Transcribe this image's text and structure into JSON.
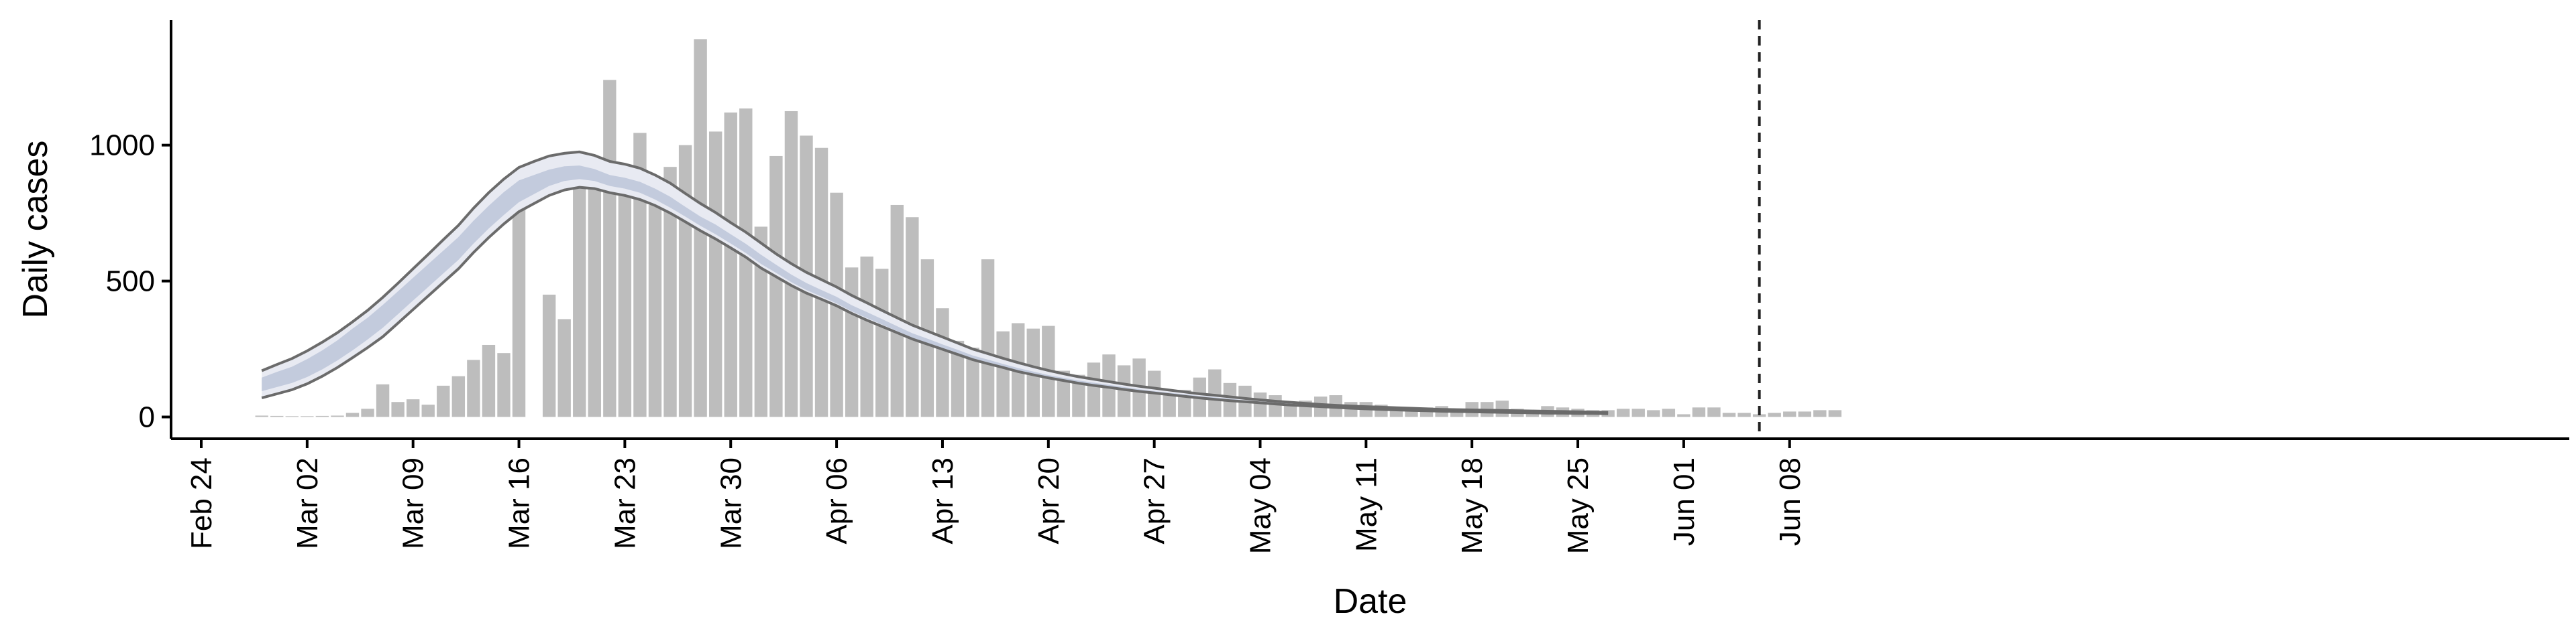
{
  "chart_data": {
    "type": "bar",
    "xlabel": "Date",
    "ylabel": "Daily cases",
    "ylim": [
      -80,
      1460
    ],
    "yticks": [
      0,
      500,
      1000
    ],
    "xticks": [
      "Feb 24",
      "Mar 02",
      "Mar 09",
      "Mar 16",
      "Mar 23",
      "Mar 30",
      "Apr 06",
      "Apr 13",
      "Apr 20",
      "Apr 27",
      "May 04",
      "May 11",
      "May 18",
      "May 25",
      "Jun 01",
      "Jun 08"
    ],
    "xtick_days": [
      0,
      7,
      14,
      21,
      28,
      35,
      42,
      49,
      56,
      63,
      70,
      77,
      84,
      91,
      98,
      105
    ],
    "x_start_date": "Feb 24",
    "bar_start_day": 4,
    "bars": [
      5,
      4,
      3,
      3,
      4,
      5,
      15,
      30,
      120,
      55,
      65,
      45,
      115,
      150,
      210,
      265,
      235,
      840,
      0,
      450,
      360,
      940,
      940,
      1240,
      890,
      1045,
      780,
      920,
      1000,
      1390,
      1050,
      1120,
      1135,
      700,
      960,
      1125,
      1035,
      990,
      825,
      550,
      590,
      545,
      780,
      735,
      580,
      400,
      280,
      255,
      580,
      315,
      345,
      325,
      335,
      170,
      155,
      200,
      230,
      190,
      215,
      170,
      95,
      100,
      145,
      175,
      125,
      115,
      90,
      80,
      55,
      60,
      75,
      80,
      55,
      55,
      45,
      35,
      30,
      35,
      40,
      30,
      55,
      55,
      60,
      30,
      25,
      40,
      35,
      30,
      25,
      25,
      30,
      30,
      25,
      30,
      10,
      35,
      35,
      15,
      15,
      10,
      15,
      20,
      20,
      25,
      25
    ],
    "band_start_day": 4,
    "estimate_median": [
      120,
      138,
      155,
      180,
      210,
      245,
      285,
      325,
      370,
      420,
      470,
      520,
      570,
      620,
      680,
      735,
      785,
      830,
      855,
      880,
      895,
      900,
      890,
      870,
      860,
      845,
      820,
      790,
      755,
      720,
      690,
      655,
      620,
      580,
      545,
      510,
      480,
      455,
      430,
      400,
      375,
      350,
      325,
      300,
      280,
      260,
      240,
      220,
      205,
      190,
      175,
      162,
      150,
      140,
      130,
      122,
      114,
      106,
      99,
      92,
      86,
      80,
      74,
      69,
      64,
      59,
      55,
      51,
      47,
      44,
      41,
      38,
      35,
      33,
      31,
      29,
      27,
      26,
      24,
      23,
      22,
      21,
      20,
      19,
      18,
      17,
      16,
      15,
      15,
      14
    ],
    "estimate_inner_lower": [
      95,
      110,
      125,
      147,
      175,
      208,
      245,
      285,
      328,
      378,
      428,
      478,
      528,
      578,
      638,
      693,
      743,
      790,
      820,
      850,
      868,
      875,
      868,
      850,
      840,
      825,
      800,
      770,
      737,
      703,
      672,
      638,
      603,
      563,
      530,
      496,
      467,
      443,
      418,
      389,
      364,
      340,
      316,
      292,
      272,
      253,
      233,
      214,
      199,
      185,
      170,
      157,
      146,
      136,
      126,
      118,
      110,
      102,
      96,
      89,
      83,
      77,
      71,
      66,
      61,
      57,
      53,
      49,
      45,
      42,
      39,
      36,
      33,
      31,
      29,
      27,
      25,
      24,
      22,
      21,
      20,
      19,
      18,
      17,
      16,
      15,
      15,
      14,
      14,
      13
    ],
    "estimate_inner_upper": [
      145,
      166,
      185,
      213,
      245,
      282,
      325,
      365,
      412,
      462,
      512,
      562,
      612,
      662,
      722,
      777,
      827,
      870,
      890,
      910,
      922,
      925,
      912,
      890,
      880,
      865,
      840,
      810,
      773,
      737,
      708,
      672,
      637,
      597,
      560,
      524,
      493,
      467,
      442,
      411,
      386,
      360,
      334,
      308,
      288,
      267,
      247,
      226,
      211,
      195,
      180,
      167,
      154,
      144,
      134,
      126,
      118,
      110,
      102,
      95,
      89,
      83,
      77,
      72,
      67,
      61,
      57,
      53,
      49,
      46,
      43,
      40,
      37,
      35,
      33,
      31,
      29,
      28,
      26,
      25,
      24,
      23,
      22,
      21,
      20,
      19,
      17,
      16,
      16,
      15
    ],
    "estimate_outer_lower": [
      70,
      85,
      100,
      122,
      150,
      182,
      218,
      255,
      295,
      345,
      395,
      445,
      495,
      545,
      605,
      660,
      710,
      755,
      785,
      815,
      835,
      845,
      840,
      825,
      815,
      800,
      778,
      750,
      718,
      685,
      655,
      622,
      588,
      548,
      516,
      484,
      456,
      433,
      409,
      381,
      356,
      333,
      310,
      287,
      268,
      249,
      230,
      211,
      196,
      182,
      167,
      155,
      144,
      134,
      124,
      116,
      109,
      101,
      94,
      88,
      82,
      76,
      70,
      65,
      60,
      56,
      52,
      48,
      44,
      41,
      38,
      35,
      32,
      30,
      28,
      26,
      24,
      23,
      21,
      20,
      19,
      18,
      17,
      16,
      15,
      14,
      14,
      13,
      13,
      12
    ],
    "estimate_outer_upper": [
      170,
      193,
      215,
      243,
      275,
      310,
      350,
      392,
      440,
      492,
      545,
      598,
      652,
      705,
      768,
      825,
      875,
      918,
      940,
      960,
      970,
      975,
      962,
      940,
      930,
      915,
      890,
      860,
      822,
      785,
      752,
      715,
      680,
      640,
      600,
      564,
      532,
      505,
      478,
      447,
      420,
      392,
      365,
      338,
      316,
      294,
      272,
      250,
      233,
      216,
      200,
      185,
      171,
      159,
      148,
      139,
      130,
      121,
      113,
      106,
      99,
      92,
      85,
      80,
      74,
      68,
      63,
      58,
      54,
      50,
      46,
      43,
      40,
      38,
      36,
      34,
      32,
      30,
      28,
      27,
      26,
      25,
      24,
      23,
      22,
      21,
      20,
      19,
      18,
      17
    ],
    "vertical_marker_day": 103,
    "grid": false
  }
}
